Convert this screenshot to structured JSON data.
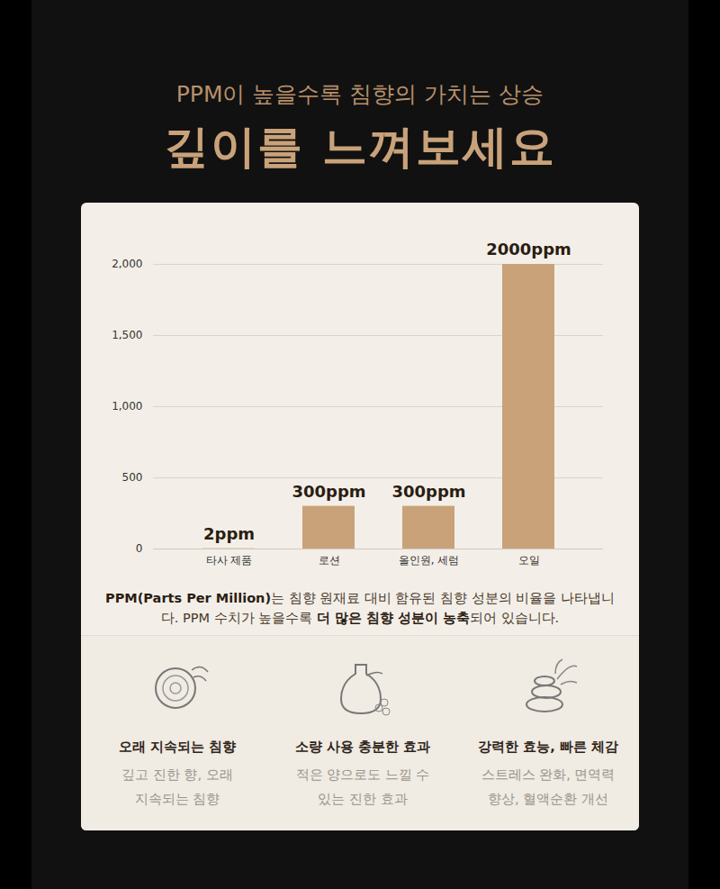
{
  "header": {
    "subtitle": "PPM이 높을수록 침향의 가치는 상승",
    "title": "깊이를 느껴보세요"
  },
  "chart_data": {
    "type": "bar",
    "categories": [
      "타사 제품",
      "로션",
      "올인원, 세럼",
      "오일"
    ],
    "values": [
      2,
      300,
      300,
      2000
    ],
    "value_labels": [
      "2ppm",
      "300ppm",
      "300ppm",
      "2000ppm"
    ],
    "data_labels": true,
    "color": "#c9a279",
    "ylim": [
      0,
      2000
    ],
    "yticks": [
      0,
      500,
      {
        "value": 1000,
        "label": "1,000"
      },
      {
        "value": 1500,
        "label": "1,500"
      },
      {
        "value": 2000,
        "label": "2,000"
      }
    ],
    "grid": true
  },
  "caption": [
    "PPM(Parts Per Million)",
    "는 침향 원재료 대비 함유된 침향 성분의 비율을 나타냅니다. PPM 수치가 높을수록 ",
    "더 많은 침향 성분이 농축",
    "되어 있습니다."
  ],
  "features": [
    {
      "title": "오래 지속되는 침향",
      "description": [
        "깊고 진한 향, 오래",
        "지속되는 침향"
      ]
    },
    {
      "title": "소량 사용 충분한 효과",
      "description": [
        "적은 양으로도 느낄 수",
        "있는 진한 효과"
      ]
    },
    {
      "title": "강력한 효능, 빠른 체감",
      "description": [
        "스트레스 완화, 면역력",
        "향상, 혈액순환 개선"
      ]
    }
  ]
}
